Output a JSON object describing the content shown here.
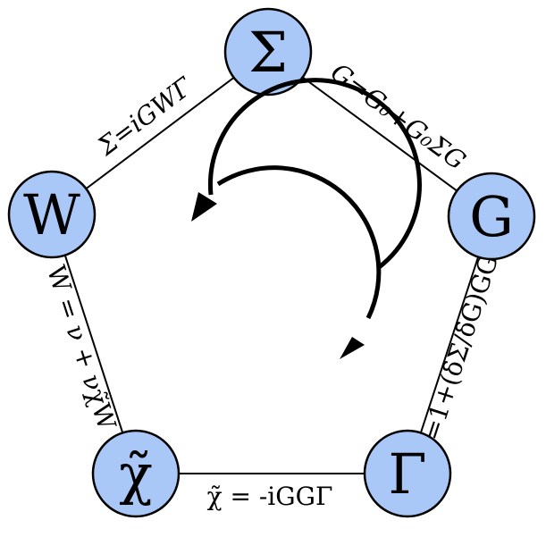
{
  "colors": {
    "node_fill": "#a9c8f7",
    "node_stroke": "#000000",
    "edge_stroke": "#000000",
    "arrow_stroke": "#000000"
  },
  "nodes": [
    {
      "id": "sigma",
      "label": "Σ"
    },
    {
      "id": "g",
      "label": "G"
    },
    {
      "id": "gamma",
      "label": "Γ"
    },
    {
      "id": "chi",
      "label": "χ̃"
    },
    {
      "id": "w",
      "label": "W"
    }
  ],
  "edges": [
    {
      "id": "w-sigma",
      "label": "Σ=iGWΓ"
    },
    {
      "id": "sigma-g",
      "label": "G=G₀+G₀ΣG"
    },
    {
      "id": "g-gamma",
      "label": "Γ=1+(δΣ/δG)GGΓ"
    },
    {
      "id": "gamma-chi",
      "label": "χ̃ = -iGGΓ"
    },
    {
      "id": "chi-w",
      "label": "W = ν + νχ̃W"
    }
  ],
  "center_icon": "cycle-arrows-icon"
}
